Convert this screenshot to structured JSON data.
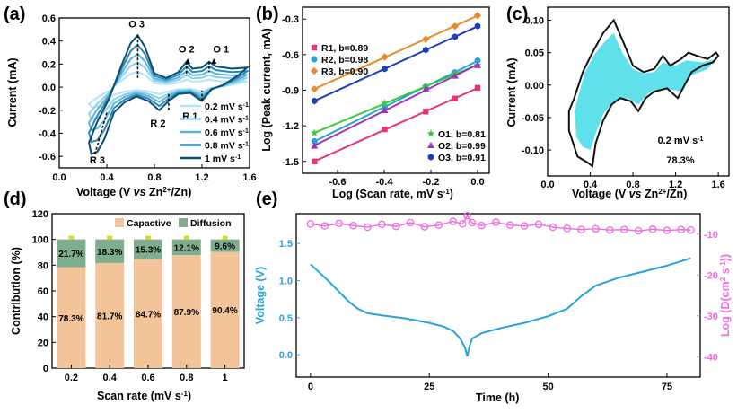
{
  "chart_data": [
    {
      "panel": "(a)",
      "type": "line",
      "xlabel": "Voltage (V vs Zn2+/Zn)",
      "ylabel": "Current (mA)",
      "xlim": [
        0.0,
        1.6
      ],
      "ylim": [
        -0.7,
        0.6
      ],
      "xticks": [
        "0.0",
        "0.4",
        "0.8",
        "1.2",
        "1.6"
      ],
      "yticks": [
        "-0.6",
        "-0.4",
        "-0.2",
        "0.0",
        "0.2",
        "0.4",
        "0.6"
      ],
      "annotations": [
        "O 3",
        "O 2",
        "O 1",
        "R 2",
        "R 1",
        "R 3"
      ],
      "legend_prefix": "mV s",
      "series": [
        {
          "name": "0.2 mV s-1",
          "scale": 0.3,
          "color": "#b3e3f4"
        },
        {
          "name": "0.4 mV s-1",
          "scale": 0.48,
          "color": "#8fd0ea"
        },
        {
          "name": "0.6 mV s-1",
          "scale": 0.64,
          "color": "#5bb3d8"
        },
        {
          "name": "0.8 mV s-1",
          "scale": 0.82,
          "color": "#2d86b4"
        },
        {
          "name": "1 mV s-1",
          "scale": 1.0,
          "color": "#0a4e72"
        }
      ],
      "legend_labels": [
        "0.2 mV s",
        "0.4 mV s",
        "0.6 mV s",
        "0.8 mV s",
        "1 mV s"
      ],
      "base_curve_anodic": [
        [
          0.25,
          -0.48
        ],
        [
          0.32,
          -0.3
        ],
        [
          0.42,
          -0.1
        ],
        [
          0.52,
          0.18
        ],
        [
          0.6,
          0.38
        ],
        [
          0.66,
          0.45
        ],
        [
          0.72,
          0.35
        ],
        [
          0.8,
          0.12
        ],
        [
          0.9,
          0.08
        ],
        [
          1.0,
          0.13
        ],
        [
          1.07,
          0.22
        ],
        [
          1.12,
          0.16
        ],
        [
          1.2,
          0.17
        ],
        [
          1.26,
          0.22
        ],
        [
          1.32,
          0.18
        ],
        [
          1.45,
          0.16
        ],
        [
          1.58,
          0.17
        ]
      ],
      "base_curve_cathodic": [
        [
          1.58,
          0.17
        ],
        [
          1.5,
          0.1
        ],
        [
          1.38,
          0.02
        ],
        [
          1.28,
          -0.02
        ],
        [
          1.2,
          -0.12
        ],
        [
          1.1,
          -0.05
        ],
        [
          1.0,
          -0.06
        ],
        [
          0.92,
          -0.12
        ],
        [
          0.84,
          -0.2
        ],
        [
          0.75,
          -0.12
        ],
        [
          0.65,
          -0.08
        ],
        [
          0.55,
          -0.13
        ],
        [
          0.46,
          -0.22
        ],
        [
          0.38,
          -0.45
        ],
        [
          0.32,
          -0.56
        ],
        [
          0.27,
          -0.58
        ],
        [
          0.25,
          -0.48
        ]
      ]
    },
    {
      "panel": "(b)",
      "type": "scatter",
      "xlabel": "Log (Scan rate, mV s-1)",
      "ylabel": "Log (Peak current, mA)",
      "xlim": [
        -0.75,
        0.05
      ],
      "ylim": [
        -1.6,
        -0.2
      ],
      "xticks": [
        "-0.6",
        "-0.4",
        "-0.2",
        "0.0"
      ],
      "yticks": [
        "-1.5",
        "-1.2",
        "-0.9",
        "-0.6",
        "-0.3"
      ],
      "x": [
        -0.699,
        -0.398,
        -0.222,
        -0.097,
        0.0
      ],
      "series": [
        {
          "name": "R1, b=0.89",
          "color": "#e8337a",
          "marker": "square",
          "values": [
            -1.5,
            -1.23,
            -1.08,
            -0.97,
            -0.88
          ]
        },
        {
          "name": "R2, b=0.98",
          "color": "#27a3e0",
          "marker": "circle",
          "values": [
            -1.33,
            -1.04,
            -0.87,
            -0.75,
            -0.65
          ]
        },
        {
          "name": "R3, b=0.90",
          "color": "#e8892a",
          "marker": "diamond",
          "values": [
            -0.89,
            -0.62,
            -0.47,
            -0.36,
            -0.27
          ]
        },
        {
          "name": "O1, b=0.81",
          "color": "#33cc33",
          "marker": "star",
          "values": [
            -1.26,
            -1.01,
            -0.87,
            -0.76,
            -0.69
          ]
        },
        {
          "name": "O2, b=0.99",
          "color": "#9b35b8",
          "marker": "triangle",
          "values": [
            -1.37,
            -1.07,
            -0.89,
            -0.78,
            -0.69
          ]
        },
        {
          "name": "O3, b=0.91",
          "color": "#1f3fb8",
          "marker": "hexagon",
          "values": [
            -0.99,
            -0.72,
            -0.56,
            -0.45,
            -0.36
          ]
        }
      ]
    },
    {
      "panel": "(c)",
      "type": "area",
      "xlabel": "Voltage (V vs Zn2+/Zn)",
      "ylabel": "Current (mA)",
      "xlim": [
        0.0,
        1.7
      ],
      "ylim": [
        -0.14,
        0.12
      ],
      "xticks": [
        "0.0",
        "0.4",
        "0.8",
        "1.2",
        "1.6"
      ],
      "yticks": [
        "-0.10",
        "-0.05",
        "0.00",
        "0.05",
        "0.10"
      ],
      "fill_color": "#5fe0ea",
      "annotations": [
        "0.2 mV s",
        "78.3%"
      ],
      "outer_curve": [
        [
          0.2,
          -0.04
        ],
        [
          0.25,
          -0.02
        ],
        [
          0.33,
          0.02
        ],
        [
          0.42,
          0.05
        ],
        [
          0.52,
          0.08
        ],
        [
          0.62,
          0.1
        ],
        [
          0.7,
          0.07
        ],
        [
          0.8,
          0.03
        ],
        [
          0.9,
          0.02
        ],
        [
          1.0,
          0.025
        ],
        [
          1.08,
          0.045
        ],
        [
          1.15,
          0.03
        ],
        [
          1.25,
          0.04
        ],
        [
          1.32,
          0.05
        ],
        [
          1.4,
          0.045
        ],
        [
          1.5,
          0.04
        ],
        [
          1.58,
          0.05
        ],
        [
          1.6,
          0.045
        ],
        [
          1.55,
          0.035
        ],
        [
          1.45,
          0.03
        ],
        [
          1.35,
          0.02
        ],
        [
          1.3,
          0.005
        ],
        [
          1.22,
          -0.02
        ],
        [
          1.12,
          -0.005
        ],
        [
          1.0,
          -0.01
        ],
        [
          0.92,
          -0.02
        ],
        [
          0.85,
          -0.04
        ],
        [
          0.78,
          -0.025
        ],
        [
          0.68,
          -0.02
        ],
        [
          0.6,
          -0.03
        ],
        [
          0.52,
          -0.055
        ],
        [
          0.45,
          -0.09
        ],
        [
          0.42,
          -0.125
        ],
        [
          0.38,
          -0.12
        ],
        [
          0.33,
          -0.115
        ],
        [
          0.28,
          -0.11
        ],
        [
          0.2,
          -0.07
        ],
        [
          0.2,
          -0.04
        ]
      ],
      "inner_curve": [
        [
          0.25,
          -0.04
        ],
        [
          0.35,
          0.02
        ],
        [
          0.45,
          0.05
        ],
        [
          0.55,
          0.07
        ],
        [
          0.62,
          0.08
        ],
        [
          0.7,
          0.05
        ],
        [
          0.8,
          0.025
        ],
        [
          0.9,
          0.018
        ],
        [
          1.0,
          0.02
        ],
        [
          1.08,
          0.035
        ],
        [
          1.2,
          0.03
        ],
        [
          1.3,
          0.038
        ],
        [
          1.45,
          0.035
        ],
        [
          1.57,
          0.04
        ],
        [
          1.5,
          0.025
        ],
        [
          1.35,
          0.015
        ],
        [
          1.25,
          -0.01
        ],
        [
          1.1,
          -0.005
        ],
        [
          0.95,
          -0.012
        ],
        [
          0.85,
          -0.03
        ],
        [
          0.75,
          -0.02
        ],
        [
          0.62,
          -0.025
        ],
        [
          0.52,
          -0.045
        ],
        [
          0.45,
          -0.075
        ],
        [
          0.4,
          -0.1
        ],
        [
          0.33,
          -0.095
        ],
        [
          0.27,
          -0.08
        ],
        [
          0.25,
          -0.04
        ]
      ]
    },
    {
      "panel": "(d)",
      "type": "bar",
      "xlabel": "Scan rate (mV s-1)",
      "ylabel": "Contribution (%)",
      "ylim": [
        0,
        120
      ],
      "yticks": [
        "0",
        "20",
        "40",
        "60",
        "80",
        "100",
        "120"
      ],
      "categories": [
        "0.2",
        "0.4",
        "0.6",
        "0.8",
        "1"
      ],
      "legend": [
        "Capactive",
        "Diffusion"
      ],
      "series": [
        {
          "name": "Capactive",
          "color": "#f3c49a",
          "values": [
            78.3,
            81.7,
            84.7,
            87.9,
            90.4
          ],
          "labels": [
            "78.3%",
            "81.7%",
            "84.7%",
            "87.9%",
            "90.4%"
          ]
        },
        {
          "name": "Diffusion",
          "color": "#7fae8f",
          "values": [
            21.7,
            18.3,
            15.3,
            12.1,
            9.6
          ],
          "labels": [
            "21.7%",
            "18.3%",
            "15.3%",
            "12.1%",
            "9.6%"
          ]
        }
      ]
    },
    {
      "panel": "(e)",
      "type": "line",
      "xlabel": "Time (h)",
      "ylabel_left": "Voltage (V)",
      "ylabel_right": "Log (D(cm2 s-1))",
      "xlim": [
        -3,
        82
      ],
      "ylim_left": [
        -0.3,
        1.9
      ],
      "ylim_right": [
        -45,
        -5
      ],
      "xticks": [
        "0",
        "25",
        "50",
        "75"
      ],
      "yticks_left": [
        "0.0",
        "0.5",
        "1.0",
        "1.5"
      ],
      "yticks_right": [
        "-10",
        "-20",
        "-30",
        "-40"
      ],
      "voltage_color": "#29a3dc",
      "diffusion_color": "#f06ae0",
      "voltage": [
        [
          0,
          1.22
        ],
        [
          2,
          1.1
        ],
        [
          4,
          0.98
        ],
        [
          6,
          0.85
        ],
        [
          8,
          0.72
        ],
        [
          10,
          0.62
        ],
        [
          12,
          0.56
        ],
        [
          15,
          0.53
        ],
        [
          20,
          0.49
        ],
        [
          25,
          0.43
        ],
        [
          28,
          0.38
        ],
        [
          30,
          0.32
        ],
        [
          31.5,
          0.22
        ],
        [
          32.5,
          0.1
        ],
        [
          33,
          -0.02
        ],
        [
          33.5,
          0.12
        ],
        [
          34,
          0.22
        ],
        [
          36,
          0.29
        ],
        [
          40,
          0.36
        ],
        [
          45,
          0.43
        ],
        [
          50,
          0.52
        ],
        [
          54,
          0.62
        ],
        [
          57,
          0.79
        ],
        [
          60,
          0.93
        ],
        [
          65,
          1.04
        ],
        [
          70,
          1.12
        ],
        [
          75,
          1.2
        ],
        [
          80,
          1.3
        ]
      ],
      "diffusion": [
        [
          0,
          -7.5
        ],
        [
          3,
          -8.0
        ],
        [
          6,
          -7.4
        ],
        [
          9,
          -7.9
        ],
        [
          12,
          -8.3
        ],
        [
          15,
          -7.6
        ],
        [
          18,
          -8.1
        ],
        [
          21,
          -7.2
        ],
        [
          24,
          -8.2
        ],
        [
          27,
          -7.8
        ],
        [
          30,
          -6.9
        ],
        [
          32,
          -7.5
        ],
        [
          33,
          -5.5
        ],
        [
          34,
          -7.2
        ],
        [
          36,
          -7.9
        ],
        [
          39,
          -7.1
        ],
        [
          42,
          -7.8
        ],
        [
          45,
          -8.0
        ],
        [
          48,
          -7.6
        ],
        [
          51,
          -8.3
        ],
        [
          54,
          -8.6
        ],
        [
          57,
          -8.9
        ],
        [
          60,
          -8.7
        ],
        [
          63,
          -9.0
        ],
        [
          66,
          -8.9
        ],
        [
          69,
          -9.2
        ],
        [
          72,
          -8.8
        ],
        [
          75,
          -9.1
        ],
        [
          78,
          -8.9
        ],
        [
          80,
          -9.0
        ]
      ]
    }
  ]
}
